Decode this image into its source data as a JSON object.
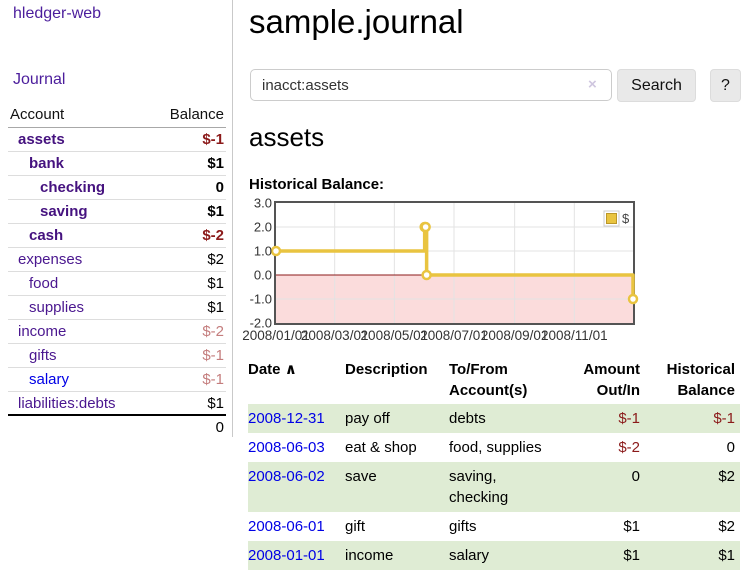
{
  "sidebar": {
    "app_title": "hledger-web",
    "journal_label": "Journal",
    "accounts_table": {
      "headers": {
        "account": "Account",
        "balance": "Balance"
      },
      "rows": [
        {
          "name": "assets",
          "balance": "$-1"
        },
        {
          "name": "bank",
          "balance": "$1"
        },
        {
          "name": "checking",
          "balance": "0"
        },
        {
          "name": "saving",
          "balance": "$1"
        },
        {
          "name": "cash",
          "balance": "$-2"
        },
        {
          "name": "expenses",
          "balance": "$2"
        },
        {
          "name": "food",
          "balance": "$1"
        },
        {
          "name": "supplies",
          "balance": "$1"
        },
        {
          "name": "income",
          "balance": "$-2"
        },
        {
          "name": "gifts",
          "balance": "$-1"
        },
        {
          "name": "salary",
          "balance": "$-1"
        },
        {
          "name": "liabilities:debts",
          "balance": "$1"
        }
      ],
      "total": "0"
    }
  },
  "main": {
    "title": "sample.journal",
    "search": {
      "value": "inacct:assets",
      "clear_icon": "×",
      "button_label": "Search",
      "help_label": "?"
    },
    "section_title": "assets",
    "chart_label": "Historical Balance:"
  },
  "chart_data": {
    "type": "line",
    "title": "Historical Balance",
    "steps": true,
    "series": [
      {
        "name": "$",
        "x_days": [
          0,
          152,
          153,
          154,
          365
        ],
        "values": [
          1,
          2,
          2,
          0,
          -1
        ]
      }
    ],
    "xlim_days": [
      0,
      365
    ],
    "ylim": [
      -2,
      3
    ],
    "x_tick_days": [
      0,
      60,
      121,
      182,
      244,
      305
    ],
    "x_tick_labels": [
      "2008/01/01",
      "2008/03/01",
      "2008/05/01",
      "2008/07/01",
      "2008/09/01",
      "2008/11/01"
    ],
    "y_ticks": [
      3,
      2,
      1,
      0,
      -1,
      -2
    ],
    "y_tick_labels": [
      "3.0",
      "2.0",
      "1.0",
      "0.0",
      "-1.0",
      "-2.0"
    ],
    "grid": true,
    "legend": {
      "label": "$",
      "position": "top-right"
    },
    "series_color": "#e9c440",
    "negative_region_fill": "#fbdcdc",
    "zero_line_color": "#8b1a1a",
    "border_color": "#545454"
  },
  "transactions": {
    "headers": {
      "date": "Date",
      "sort_indicator": "∧",
      "description": "Description",
      "accounts": "To/From Account(s)",
      "amount": "Amount Out/In",
      "balance": "Historical Balance"
    },
    "rows": [
      {
        "date": "2008-12-31",
        "description": "pay off",
        "accounts": "debts",
        "amount": "$-1",
        "balance": "$-1"
      },
      {
        "date": "2008-06-03",
        "description": "eat & shop",
        "accounts": "food, supplies",
        "amount": "$-2",
        "balance": "0"
      },
      {
        "date": "2008-06-02",
        "description": "save",
        "accounts": "saving, checking",
        "amount": "0",
        "balance": "$2"
      },
      {
        "date": "2008-06-01",
        "description": "gift",
        "accounts": "gifts",
        "amount": "$1",
        "balance": "$2"
      },
      {
        "date": "2008-01-01",
        "description": "income",
        "accounts": "salary",
        "amount": "$1",
        "balance": "$1"
      }
    ]
  },
  "colors": {
    "link_purple": "#4a178f",
    "link_blue": "#0000e6",
    "negative_strong": "#8b1a1a",
    "negative_soft": "#c47d7d",
    "row_green": "#dfecd4",
    "chart_yellow": "#e9c440",
    "chart_negative_pink": "#fbdcdc"
  }
}
